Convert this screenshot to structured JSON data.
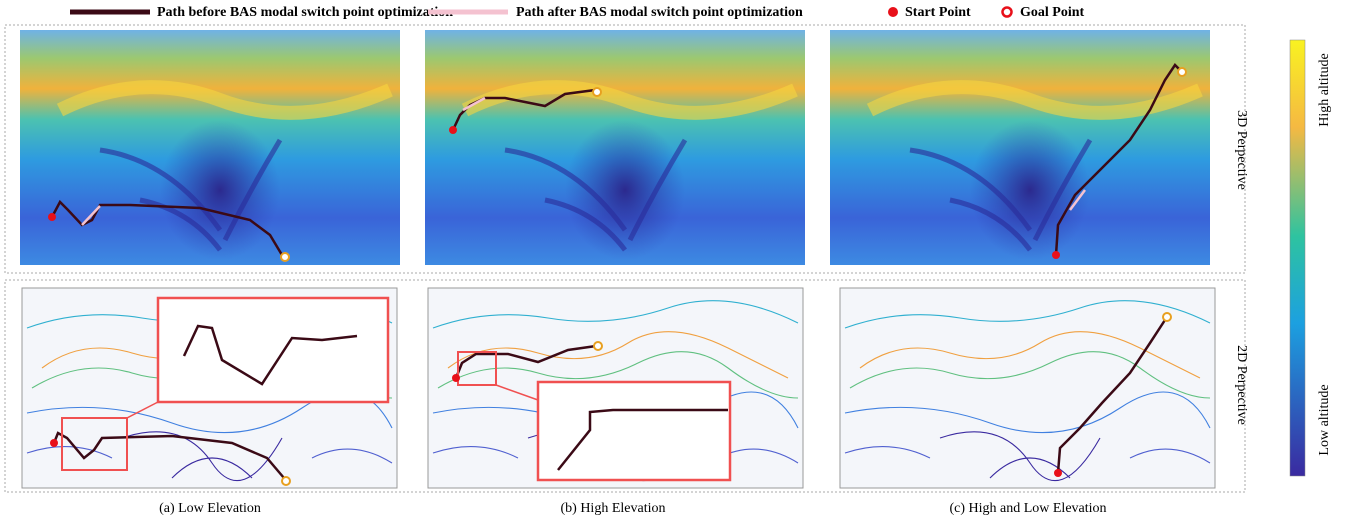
{
  "legend": {
    "items": [
      "Path before BAS modal switch point optimization",
      "Path after BAS modal switch point optimization",
      "Start Point",
      "Goal Point"
    ]
  },
  "panels": [
    {
      "caption": "(a)  Low Elevation"
    },
    {
      "caption": "(b)  High Elevation"
    },
    {
      "caption": "(c)  High and Low Elevation"
    }
  ],
  "row_labels": [
    "3D Perpective",
    "2D Perpective"
  ],
  "colorbar": {
    "top_label": "High altitude",
    "bottom_label": "Low altitude"
  }
}
